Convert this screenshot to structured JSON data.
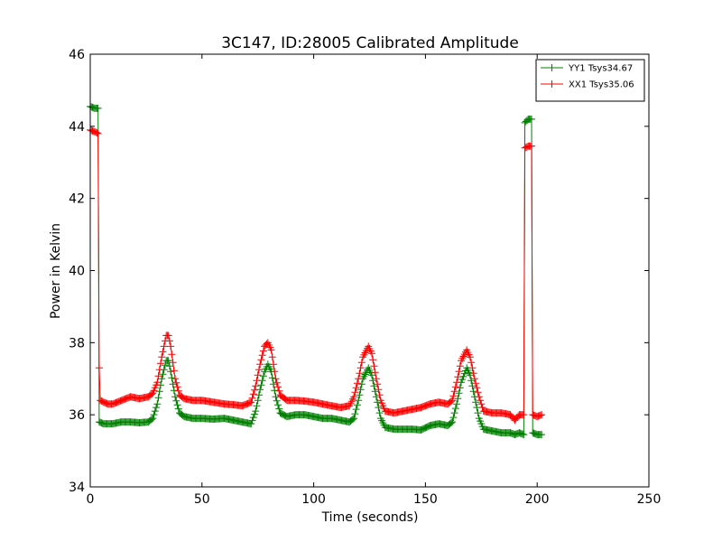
{
  "chart_data": {
    "type": "line",
    "title": "3C147, ID:28005 Calibrated Amplitude",
    "xlabel": "Time (seconds)",
    "ylabel": "Power in Kelvin",
    "xlim": [
      0,
      250
    ],
    "ylim": [
      34,
      46
    ],
    "xticks": [
      0,
      50,
      100,
      150,
      200,
      250
    ],
    "yticks": [
      34,
      36,
      38,
      40,
      42,
      44,
      46
    ],
    "grid": false,
    "legend_position": "top-right",
    "marker": "+",
    "series": [
      {
        "name": "YY1 Tsys34.67",
        "color": "#008000",
        "points": [
          [
            0,
            44.55
          ],
          [
            2,
            44.5
          ],
          [
            3.5,
            44.5
          ],
          [
            4,
            35.8
          ],
          [
            6,
            35.75
          ],
          [
            8,
            35.75
          ],
          [
            10,
            35.75
          ],
          [
            14,
            35.8
          ],
          [
            18,
            35.8
          ],
          [
            22,
            35.78
          ],
          [
            26,
            35.8
          ],
          [
            28,
            35.9
          ],
          [
            30,
            36.3
          ],
          [
            32,
            37.0
          ],
          [
            34,
            37.5
          ],
          [
            35,
            37.5
          ],
          [
            36,
            37.2
          ],
          [
            38,
            36.5
          ],
          [
            40,
            36.05
          ],
          [
            42,
            35.95
          ],
          [
            46,
            35.9
          ],
          [
            50,
            35.9
          ],
          [
            55,
            35.88
          ],
          [
            60,
            35.9
          ],
          [
            64,
            35.85
          ],
          [
            68,
            35.8
          ],
          [
            72,
            35.75
          ],
          [
            74,
            36.1
          ],
          [
            76,
            36.7
          ],
          [
            78,
            37.2
          ],
          [
            79.5,
            37.4
          ],
          [
            81,
            37.2
          ],
          [
            83,
            36.5
          ],
          [
            85,
            36.05
          ],
          [
            88,
            35.95
          ],
          [
            92,
            36.0
          ],
          [
            96,
            36.0
          ],
          [
            100,
            35.95
          ],
          [
            104,
            35.9
          ],
          [
            108,
            35.9
          ],
          [
            112,
            35.85
          ],
          [
            116,
            35.8
          ],
          [
            118,
            35.9
          ],
          [
            120,
            36.4
          ],
          [
            122,
            37.0
          ],
          [
            124.5,
            37.3
          ],
          [
            126,
            37.1
          ],
          [
            128,
            36.5
          ],
          [
            130,
            35.9
          ],
          [
            132,
            35.65
          ],
          [
            136,
            35.6
          ],
          [
            140,
            35.6
          ],
          [
            144,
            35.6
          ],
          [
            148,
            35.58
          ],
          [
            152,
            35.7
          ],
          [
            156,
            35.75
          ],
          [
            160,
            35.7
          ],
          [
            162,
            35.8
          ],
          [
            164,
            36.3
          ],
          [
            166,
            36.9
          ],
          [
            168.5,
            37.3
          ],
          [
            170,
            37.1
          ],
          [
            172,
            36.5
          ],
          [
            174,
            35.9
          ],
          [
            176,
            35.6
          ],
          [
            180,
            35.55
          ],
          [
            184,
            35.5
          ],
          [
            188,
            35.5
          ],
          [
            190,
            35.45
          ],
          [
            192,
            35.5
          ],
          [
            194,
            35.45
          ],
          [
            194.5,
            44.1
          ],
          [
            196,
            44.2
          ],
          [
            197.5,
            44.2
          ],
          [
            198,
            35.5
          ],
          [
            200,
            35.45
          ],
          [
            202,
            35.45
          ]
        ]
      },
      {
        "name": "XX1 Tsys35.06",
        "color": "#ff0000",
        "points": [
          [
            0,
            43.9
          ],
          [
            2,
            43.85
          ],
          [
            3.5,
            43.8
          ],
          [
            4,
            37.3
          ],
          [
            4.5,
            36.4
          ],
          [
            6,
            36.35
          ],
          [
            8,
            36.3
          ],
          [
            10,
            36.3
          ],
          [
            14,
            36.4
          ],
          [
            18,
            36.5
          ],
          [
            22,
            36.45
          ],
          [
            26,
            36.5
          ],
          [
            28,
            36.6
          ],
          [
            30,
            36.9
          ],
          [
            32,
            37.6
          ],
          [
            34,
            38.2
          ],
          [
            35,
            38.2
          ],
          [
            36,
            37.9
          ],
          [
            38,
            37.0
          ],
          [
            40,
            36.55
          ],
          [
            42,
            36.45
          ],
          [
            46,
            36.4
          ],
          [
            50,
            36.4
          ],
          [
            55,
            36.35
          ],
          [
            60,
            36.3
          ],
          [
            64,
            36.28
          ],
          [
            68,
            36.25
          ],
          [
            72,
            36.35
          ],
          [
            74,
            36.8
          ],
          [
            76,
            37.4
          ],
          [
            78,
            37.9
          ],
          [
            79.5,
            38.0
          ],
          [
            81,
            37.8
          ],
          [
            83,
            37.0
          ],
          [
            85,
            36.55
          ],
          [
            88,
            36.4
          ],
          [
            92,
            36.4
          ],
          [
            96,
            36.38
          ],
          [
            100,
            36.35
          ],
          [
            104,
            36.3
          ],
          [
            108,
            36.25
          ],
          [
            112,
            36.2
          ],
          [
            116,
            36.25
          ],
          [
            118,
            36.5
          ],
          [
            120,
            37.0
          ],
          [
            122,
            37.6
          ],
          [
            124.5,
            37.9
          ],
          [
            126,
            37.7
          ],
          [
            128,
            37.0
          ],
          [
            130,
            36.4
          ],
          [
            132,
            36.1
          ],
          [
            136,
            36.05
          ],
          [
            140,
            36.1
          ],
          [
            144,
            36.15
          ],
          [
            148,
            36.2
          ],
          [
            152,
            36.3
          ],
          [
            156,
            36.35
          ],
          [
            160,
            36.3
          ],
          [
            162,
            36.4
          ],
          [
            164,
            36.9
          ],
          [
            166,
            37.5
          ],
          [
            168.5,
            37.8
          ],
          [
            170,
            37.6
          ],
          [
            172,
            37.0
          ],
          [
            174,
            36.5
          ],
          [
            176,
            36.1
          ],
          [
            180,
            36.05
          ],
          [
            184,
            36.05
          ],
          [
            188,
            36.0
          ],
          [
            190,
            35.85
          ],
          [
            192,
            36.0
          ],
          [
            194,
            36.0
          ],
          [
            194.5,
            43.4
          ],
          [
            196,
            43.45
          ],
          [
            197.5,
            43.45
          ],
          [
            198,
            36.0
          ],
          [
            200,
            35.95
          ],
          [
            202,
            36.0
          ]
        ]
      }
    ]
  }
}
